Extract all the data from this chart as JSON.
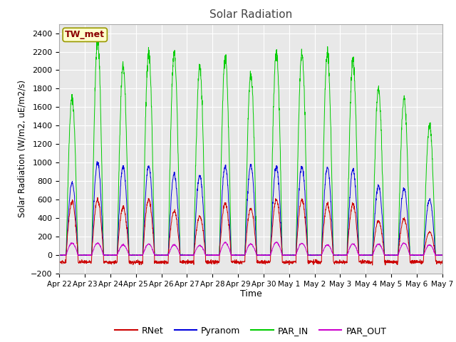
{
  "title": "Solar Radiation",
  "ylabel": "Solar Radiation (W/m2, uE/m2/s)",
  "xlabel": "Time",
  "ylim": [
    -200,
    2500
  ],
  "yticks": [
    -200,
    0,
    200,
    400,
    600,
    800,
    1000,
    1200,
    1400,
    1600,
    1800,
    2000,
    2200,
    2400
  ],
  "station_label": "TW_met",
  "colors": {
    "RNet": "#cc0000",
    "Pyranom": "#0000dd",
    "PAR_IN": "#00cc00",
    "PAR_OUT": "#cc00cc"
  },
  "fig_bg_color": "#ffffff",
  "plot_bg_color": "#e8e8e8",
  "n_days": 15,
  "points_per_day": 144,
  "par_in_peaks": [
    1700,
    2300,
    2050,
    2180,
    2180,
    2040,
    2130,
    1950,
    2200,
    2180,
    2180,
    2100,
    1800,
    1700,
    1400
  ],
  "pyranom_peaks": [
    780,
    1000,
    960,
    970,
    880,
    860,
    960,
    975,
    960,
    965,
    950,
    920,
    750,
    720,
    600
  ],
  "rnet_peaks": [
    580,
    600,
    520,
    600,
    480,
    420,
    560,
    500,
    600,
    600,
    550,
    550,
    370,
    390,
    250
  ],
  "par_out_peaks": [
    130,
    130,
    110,
    120,
    110,
    105,
    135,
    120,
    140,
    130,
    110,
    120,
    120,
    130,
    110
  ],
  "tick_labels": [
    "Apr 22",
    "Apr 23",
    "Apr 24",
    "Apr 25",
    "Apr 26",
    "Apr 27",
    "Apr 28",
    "Apr 29",
    "Apr 30",
    "May 1",
    "May 2",
    "May 3",
    "May 4",
    "May 5",
    "May 6",
    "May 7"
  ]
}
